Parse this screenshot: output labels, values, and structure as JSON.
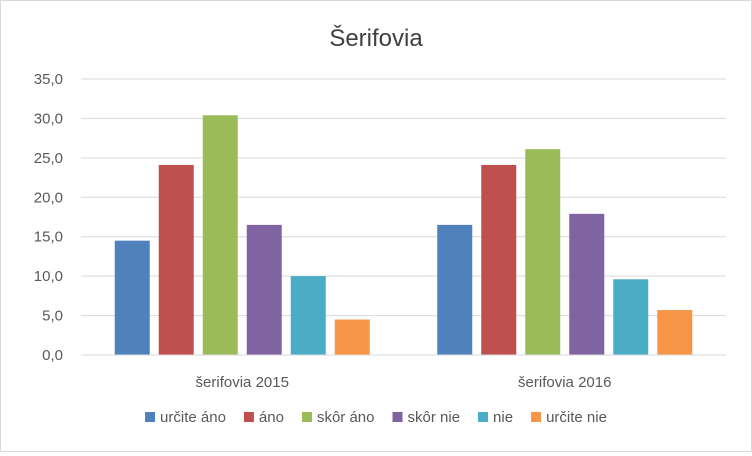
{
  "chart_data": {
    "type": "bar",
    "title": "Šerifovia",
    "xlabel": "",
    "ylabel": "",
    "categories": [
      "šerifovia 2015",
      "šerifovia 2016"
    ],
    "ylim": [
      0,
      35
    ],
    "yticks": [
      "0,0",
      "5,0",
      "10,0",
      "15,0",
      "20,0",
      "25,0",
      "30,0",
      "35,0"
    ],
    "grid": true,
    "legend_position": "bottom",
    "series": [
      {
        "name": "určite áno",
        "color": "#4F81BD",
        "values": [
          14.5,
          16.5
        ]
      },
      {
        "name": "áno",
        "color": "#C0504D",
        "values": [
          24.1,
          24.1
        ]
      },
      {
        "name": "skôr áno",
        "color": "#9BBB59",
        "values": [
          30.4,
          26.1
        ]
      },
      {
        "name": "skôr nie",
        "color": "#8064A2",
        "values": [
          16.5,
          17.9
        ]
      },
      {
        "name": "nie",
        "color": "#4BACC6",
        "values": [
          10.0,
          9.6
        ]
      },
      {
        "name": "určite nie",
        "color": "#F79646",
        "values": [
          4.5,
          5.7
        ]
      }
    ]
  }
}
